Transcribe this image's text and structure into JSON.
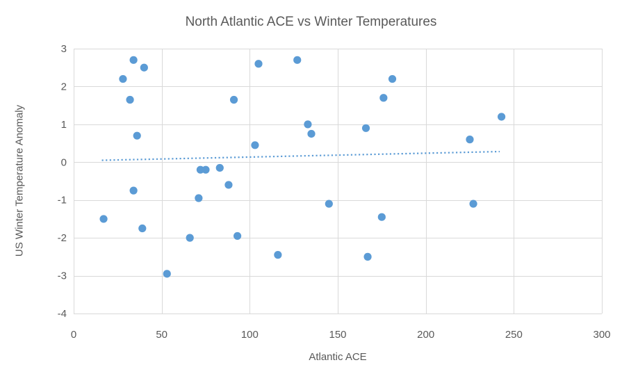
{
  "chart_data": {
    "type": "scatter",
    "title": "North Atlantic ACE vs Winter Temperatures",
    "xlabel": "Atlantic ACE",
    "ylabel": "US Winter Temperature Anomaly",
    "xlim": [
      0,
      300
    ],
    "ylim": [
      -4,
      3
    ],
    "x_ticks": [
      0,
      50,
      100,
      150,
      200,
      250,
      300
    ],
    "y_ticks": [
      3,
      2,
      1,
      0,
      -1,
      -2,
      -3,
      -4
    ],
    "grid": true,
    "legend": false,
    "marker_color": "#5B9BD5",
    "trendline_color": "#5B9BD5",
    "gridline_color": "#D9D9D9",
    "text_color": "#595959",
    "background_color": "#FFFFFF",
    "points": [
      [
        17,
        -1.5
      ],
      [
        28,
        2.2
      ],
      [
        32,
        1.65
      ],
      [
        34,
        2.7
      ],
      [
        34,
        -0.75
      ],
      [
        36,
        0.7
      ],
      [
        39,
        -1.75
      ],
      [
        40,
        2.5
      ],
      [
        53,
        -2.95
      ],
      [
        66,
        -2.0
      ],
      [
        71,
        -0.95
      ],
      [
        72,
        -0.2
      ],
      [
        75,
        -0.2
      ],
      [
        83,
        -0.15
      ],
      [
        88,
        -0.6
      ],
      [
        91,
        1.65
      ],
      [
        93,
        -1.95
      ],
      [
        103,
        0.45
      ],
      [
        105,
        2.6
      ],
      [
        116,
        -2.45
      ],
      [
        127,
        2.7
      ],
      [
        133,
        1.0
      ],
      [
        135,
        0.75
      ],
      [
        145,
        -1.1
      ],
      [
        166,
        0.9
      ],
      [
        167,
        -2.5
      ],
      [
        175,
        -1.45
      ],
      [
        176,
        1.7
      ],
      [
        181,
        2.2
      ],
      [
        225,
        0.6
      ],
      [
        227,
        -1.1
      ],
      [
        243,
        1.2
      ]
    ],
    "trendline": {
      "style": "dotted",
      "start": [
        16,
        0.05
      ],
      "end": [
        242,
        0.28
      ]
    }
  }
}
